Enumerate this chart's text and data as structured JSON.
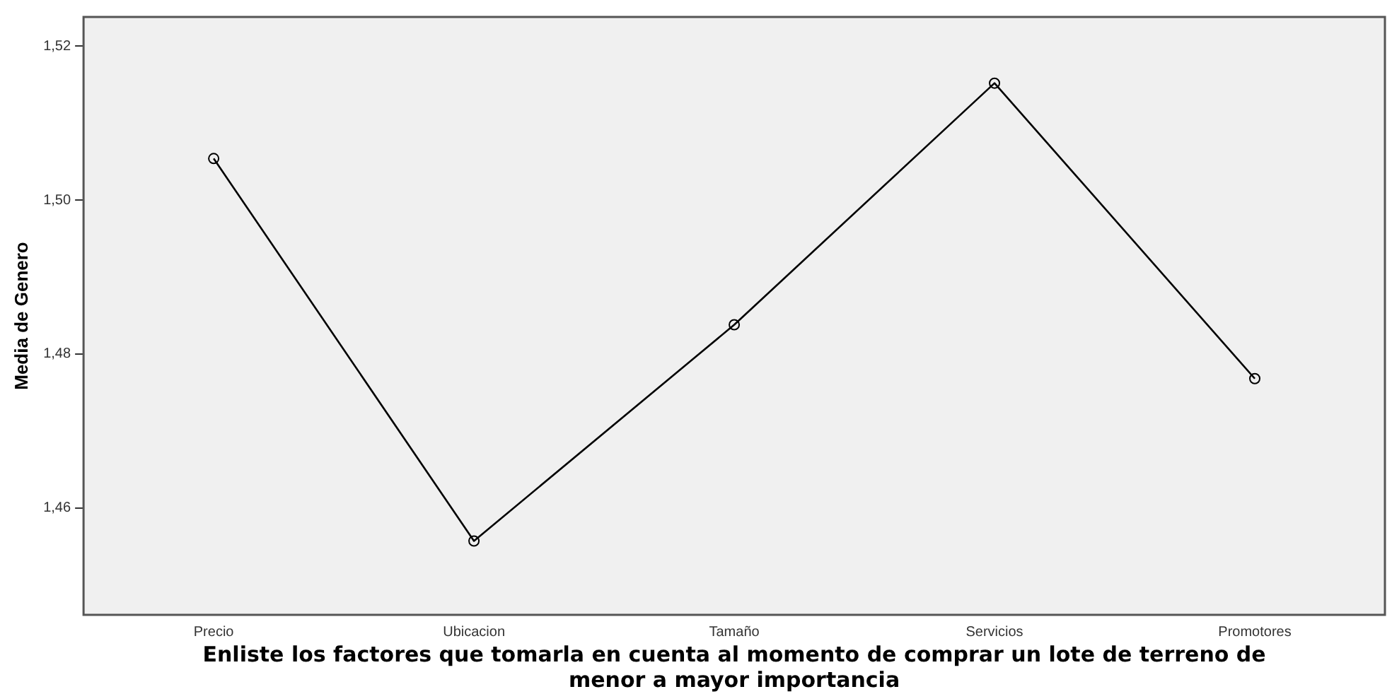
{
  "chart_data": {
    "type": "line",
    "xlabel": "Enliste los factores que tomarla en cuenta al momento de comprar un lote de terreno de menor a mayor importancia",
    "ylabel": "Media de Genero",
    "categories": [
      "Precio",
      "Ubicacion",
      "Tamaño",
      "Servicios",
      "Promotores"
    ],
    "series": [
      {
        "color": "#000000",
        "values": [
          1.5054,
          1.4557,
          1.4838,
          1.5152,
          1.4768
        ]
      }
    ],
    "ylim": [
      1.4461,
      1.5238
    ],
    "yticks": [
      {
        "value": 1.46,
        "label": "1,46"
      },
      {
        "value": 1.48,
        "label": "1,48"
      },
      {
        "value": 1.5,
        "label": "1,50"
      },
      {
        "value": 1.52,
        "label": "1,52"
      }
    ],
    "grid": false,
    "legend": false,
    "marker": "circle",
    "line_style": "solid"
  }
}
